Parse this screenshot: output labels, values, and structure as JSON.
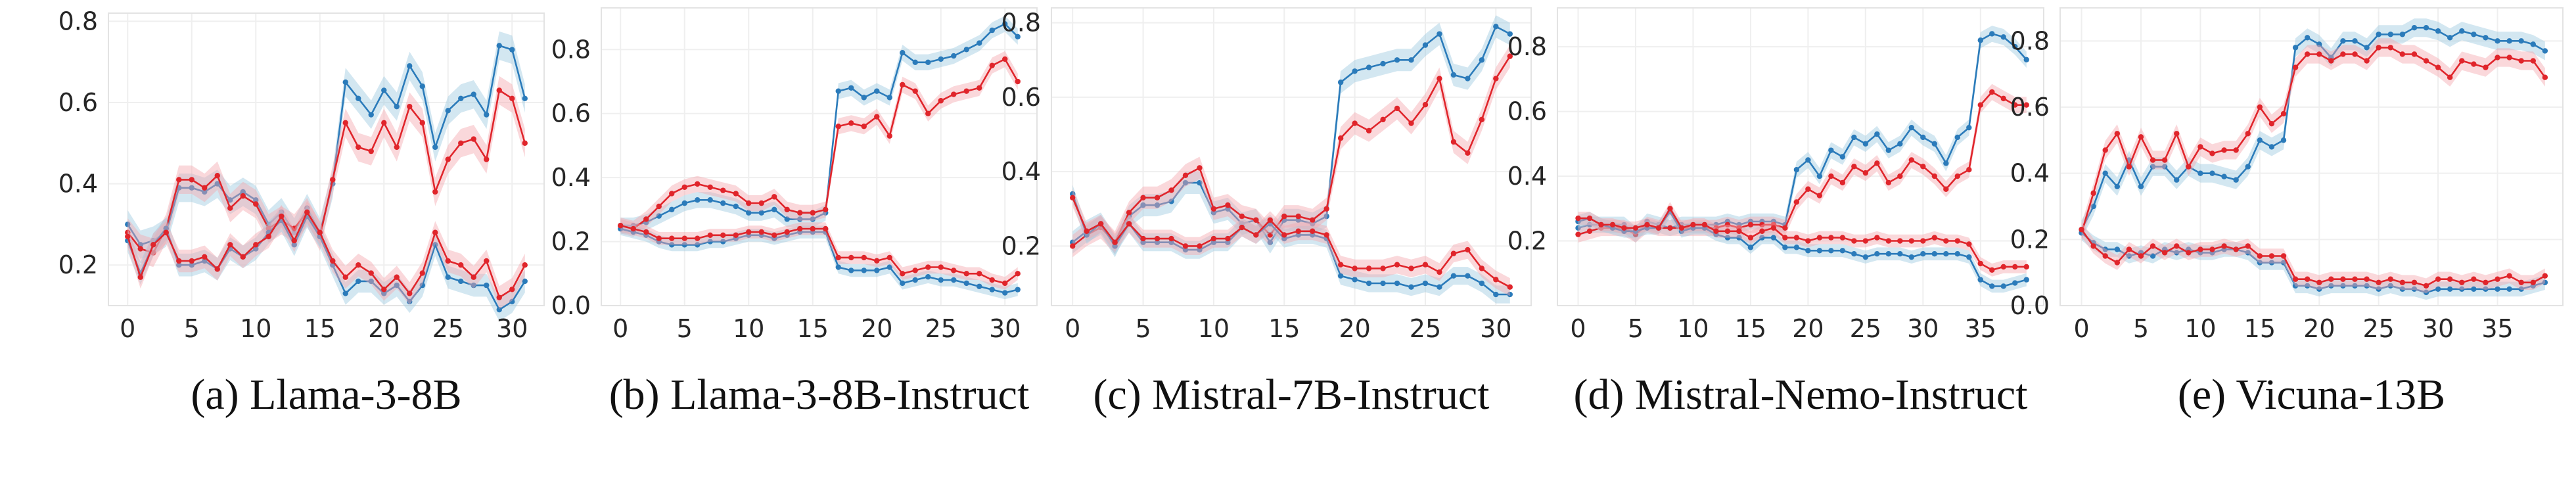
{
  "colors": {
    "blue": "#2b7bba",
    "red": "#e0252b",
    "blue_band": "#9ecae1",
    "red_band": "#f4a9b0"
  },
  "chart_data": [
    {
      "type": "line",
      "caption": "(a) Llama-3-8B",
      "x": [
        0,
        1,
        2,
        3,
        4,
        5,
        6,
        7,
        8,
        9,
        10,
        11,
        12,
        13,
        14,
        15,
        16,
        17,
        18,
        19,
        20,
        21,
        22,
        23,
        24,
        25,
        26,
        27,
        28,
        29,
        30,
        31
      ],
      "xlim": [
        -1.5,
        32.5
      ],
      "ylim": [
        0.1,
        0.82
      ],
      "xticks": [
        0,
        5,
        10,
        15,
        20,
        25,
        30
      ],
      "yticks": [
        0.2,
        0.4,
        0.6,
        0.8
      ],
      "series": [
        {
          "color": "blue",
          "values": [
            0.3,
            0.25,
            0.26,
            0.28,
            0.39,
            0.39,
            0.38,
            0.4,
            0.36,
            0.38,
            0.36,
            0.3,
            0.33,
            0.28,
            0.34,
            0.28,
            0.4,
            0.65,
            0.61,
            0.57,
            0.63,
            0.59,
            0.69,
            0.64,
            0.49,
            0.58,
            0.61,
            0.62,
            0.57,
            0.74,
            0.73,
            0.61
          ]
        },
        {
          "color": "red",
          "values": [
            0.28,
            0.24,
            0.23,
            0.29,
            0.41,
            0.41,
            0.39,
            0.42,
            0.34,
            0.37,
            0.35,
            0.29,
            0.31,
            0.29,
            0.33,
            0.27,
            0.41,
            0.55,
            0.49,
            0.48,
            0.55,
            0.49,
            0.59,
            0.55,
            0.38,
            0.46,
            0.5,
            0.51,
            0.46,
            0.63,
            0.61,
            0.5
          ]
        },
        {
          "color": "blue",
          "values": [
            0.26,
            0.18,
            0.25,
            0.29,
            0.2,
            0.2,
            0.21,
            0.19,
            0.24,
            0.22,
            0.24,
            0.28,
            0.31,
            0.25,
            0.32,
            0.27,
            0.2,
            0.13,
            0.16,
            0.16,
            0.13,
            0.15,
            0.11,
            0.15,
            0.25,
            0.17,
            0.16,
            0.15,
            0.15,
            0.09,
            0.11,
            0.16
          ]
        },
        {
          "color": "red",
          "values": [
            0.27,
            0.17,
            0.25,
            0.28,
            0.21,
            0.21,
            0.22,
            0.19,
            0.25,
            0.22,
            0.25,
            0.27,
            0.32,
            0.26,
            0.33,
            0.28,
            0.21,
            0.17,
            0.2,
            0.18,
            0.14,
            0.17,
            0.13,
            0.18,
            0.28,
            0.21,
            0.2,
            0.17,
            0.21,
            0.12,
            0.14,
            0.2
          ]
        }
      ]
    },
    {
      "type": "line",
      "caption": "(b) Llama-3-8B-Instruct",
      "x": [
        0,
        1,
        2,
        3,
        4,
        5,
        6,
        7,
        8,
        9,
        10,
        11,
        12,
        13,
        14,
        15,
        16,
        17,
        18,
        19,
        20,
        21,
        22,
        23,
        24,
        25,
        26,
        27,
        28,
        29,
        30,
        31
      ],
      "xlim": [
        -1.5,
        32.5
      ],
      "ylim": [
        0.0,
        0.93
      ],
      "xticks": [
        0,
        5,
        10,
        15,
        20,
        25,
        30
      ],
      "yticks": [
        0.0,
        0.2,
        0.4,
        0.6,
        0.8
      ],
      "series": [
        {
          "color": "blue",
          "values": [
            0.25,
            0.25,
            0.26,
            0.28,
            0.3,
            0.32,
            0.33,
            0.33,
            0.32,
            0.31,
            0.29,
            0.29,
            0.3,
            0.27,
            0.27,
            0.27,
            0.29,
            0.67,
            0.68,
            0.65,
            0.67,
            0.65,
            0.79,
            0.76,
            0.76,
            0.77,
            0.78,
            0.8,
            0.82,
            0.86,
            0.88,
            0.84
          ]
        },
        {
          "color": "red",
          "values": [
            0.25,
            0.24,
            0.27,
            0.31,
            0.35,
            0.37,
            0.38,
            0.37,
            0.36,
            0.35,
            0.32,
            0.32,
            0.34,
            0.3,
            0.29,
            0.29,
            0.3,
            0.56,
            0.57,
            0.56,
            0.59,
            0.53,
            0.69,
            0.67,
            0.6,
            0.64,
            0.66,
            0.67,
            0.68,
            0.75,
            0.77,
            0.7
          ]
        },
        {
          "color": "blue",
          "values": [
            0.24,
            0.23,
            0.22,
            0.2,
            0.19,
            0.19,
            0.19,
            0.2,
            0.2,
            0.21,
            0.22,
            0.22,
            0.21,
            0.22,
            0.23,
            0.23,
            0.23,
            0.12,
            0.11,
            0.11,
            0.11,
            0.12,
            0.07,
            0.08,
            0.09,
            0.08,
            0.08,
            0.07,
            0.06,
            0.05,
            0.04,
            0.05
          ]
        },
        {
          "color": "red",
          "values": [
            0.25,
            0.24,
            0.23,
            0.21,
            0.21,
            0.21,
            0.21,
            0.22,
            0.22,
            0.22,
            0.23,
            0.23,
            0.22,
            0.23,
            0.24,
            0.24,
            0.24,
            0.15,
            0.15,
            0.15,
            0.14,
            0.15,
            0.1,
            0.11,
            0.12,
            0.12,
            0.11,
            0.1,
            0.1,
            0.08,
            0.07,
            0.1
          ]
        }
      ]
    },
    {
      "type": "line",
      "caption": "(c) Mistral-7B-Instruct",
      "x": [
        0,
        1,
        2,
        3,
        4,
        5,
        6,
        7,
        8,
        9,
        10,
        11,
        12,
        13,
        14,
        15,
        16,
        17,
        18,
        19,
        20,
        21,
        22,
        23,
        24,
        25,
        26,
        27,
        28,
        29,
        30,
        31
      ],
      "xlim": [
        -1.5,
        32.5
      ],
      "ylim": [
        0.04,
        0.84
      ],
      "xticks": [
        0,
        5,
        10,
        15,
        20,
        25,
        30
      ],
      "yticks": [
        0.2,
        0.4,
        0.6,
        0.8
      ],
      "series": [
        {
          "color": "blue",
          "values": [
            0.21,
            0.24,
            0.26,
            0.2,
            0.28,
            0.31,
            0.31,
            0.32,
            0.37,
            0.37,
            0.29,
            0.3,
            0.26,
            0.27,
            0.21,
            0.27,
            0.27,
            0.26,
            0.28,
            0.64,
            0.67,
            0.68,
            0.69,
            0.7,
            0.7,
            0.74,
            0.77,
            0.66,
            0.65,
            0.7,
            0.79,
            0.77
          ]
        },
        {
          "color": "red",
          "values": [
            0.2,
            0.23,
            0.25,
            0.21,
            0.29,
            0.33,
            0.33,
            0.35,
            0.39,
            0.41,
            0.3,
            0.31,
            0.28,
            0.27,
            0.23,
            0.28,
            0.28,
            0.27,
            0.3,
            0.49,
            0.53,
            0.51,
            0.54,
            0.57,
            0.53,
            0.58,
            0.65,
            0.48,
            0.45,
            0.54,
            0.65,
            0.71
          ]
        },
        {
          "color": "blue",
          "values": [
            0.34,
            0.23,
            0.26,
            0.2,
            0.26,
            0.21,
            0.21,
            0.21,
            0.19,
            0.19,
            0.21,
            0.21,
            0.25,
            0.23,
            0.26,
            0.22,
            0.23,
            0.23,
            0.22,
            0.12,
            0.11,
            0.1,
            0.1,
            0.1,
            0.09,
            0.1,
            0.09,
            0.12,
            0.12,
            0.1,
            0.07,
            0.07
          ]
        },
        {
          "color": "red",
          "values": [
            0.33,
            0.24,
            0.26,
            0.21,
            0.26,
            0.22,
            0.22,
            0.22,
            0.2,
            0.2,
            0.22,
            0.22,
            0.25,
            0.23,
            0.27,
            0.23,
            0.24,
            0.24,
            0.23,
            0.15,
            0.14,
            0.14,
            0.14,
            0.15,
            0.14,
            0.15,
            0.13,
            0.18,
            0.19,
            0.14,
            0.11,
            0.09
          ]
        }
      ]
    },
    {
      "type": "line",
      "caption": "(d) Mistral-Nemo-Instruct",
      "x": [
        0,
        1,
        2,
        3,
        4,
        5,
        6,
        7,
        8,
        9,
        10,
        11,
        12,
        13,
        14,
        15,
        16,
        17,
        18,
        19,
        20,
        21,
        22,
        23,
        24,
        25,
        26,
        27,
        28,
        29,
        30,
        31,
        32,
        33,
        34,
        35,
        36,
        37,
        38,
        39
      ],
      "xlim": [
        -1.8,
        40.5
      ],
      "ylim": [
        0.0,
        0.92
      ],
      "xticks": [
        0,
        5,
        10,
        15,
        20,
        25,
        30,
        35
      ],
      "yticks": [
        0.2,
        0.4,
        0.6,
        0.8
      ],
      "series": [
        {
          "color": "blue",
          "values": [
            0.24,
            0.25,
            0.25,
            0.25,
            0.25,
            0.22,
            0.26,
            0.25,
            0.24,
            0.25,
            0.25,
            0.25,
            0.25,
            0.26,
            0.25,
            0.26,
            0.26,
            0.26,
            0.25,
            0.42,
            0.45,
            0.4,
            0.48,
            0.46,
            0.52,
            0.5,
            0.53,
            0.48,
            0.5,
            0.55,
            0.52,
            0.5,
            0.44,
            0.52,
            0.55,
            0.82,
            0.84,
            0.83,
            0.8,
            0.76
          ]
        },
        {
          "color": "red",
          "values": [
            0.22,
            0.23,
            0.24,
            0.24,
            0.24,
            0.22,
            0.25,
            0.24,
            0.24,
            0.24,
            0.24,
            0.24,
            0.24,
            0.25,
            0.24,
            0.25,
            0.25,
            0.25,
            0.24,
            0.32,
            0.36,
            0.34,
            0.4,
            0.38,
            0.43,
            0.41,
            0.44,
            0.38,
            0.4,
            0.45,
            0.43,
            0.4,
            0.36,
            0.4,
            0.42,
            0.62,
            0.66,
            0.64,
            0.62,
            0.62
          ]
        },
        {
          "color": "blue",
          "values": [
            0.26,
            0.27,
            0.25,
            0.24,
            0.23,
            0.23,
            0.24,
            0.24,
            0.29,
            0.23,
            0.24,
            0.24,
            0.22,
            0.21,
            0.21,
            0.18,
            0.21,
            0.21,
            0.18,
            0.18,
            0.17,
            0.17,
            0.17,
            0.17,
            0.16,
            0.15,
            0.16,
            0.16,
            0.16,
            0.15,
            0.16,
            0.16,
            0.16,
            0.16,
            0.15,
            0.08,
            0.06,
            0.06,
            0.07,
            0.08
          ]
        },
        {
          "color": "red",
          "values": [
            0.27,
            0.27,
            0.25,
            0.25,
            0.24,
            0.24,
            0.25,
            0.24,
            0.3,
            0.24,
            0.25,
            0.25,
            0.23,
            0.23,
            0.23,
            0.21,
            0.23,
            0.24,
            0.21,
            0.21,
            0.2,
            0.21,
            0.21,
            0.21,
            0.2,
            0.2,
            0.21,
            0.2,
            0.2,
            0.2,
            0.2,
            0.21,
            0.2,
            0.2,
            0.19,
            0.13,
            0.11,
            0.12,
            0.12,
            0.12
          ]
        }
      ]
    },
    {
      "type": "line",
      "caption": "(e) Vicuna-13B",
      "x": [
        0,
        1,
        2,
        3,
        4,
        5,
        6,
        7,
        8,
        9,
        10,
        11,
        12,
        13,
        14,
        15,
        16,
        17,
        18,
        19,
        20,
        21,
        22,
        23,
        24,
        25,
        26,
        27,
        28,
        29,
        30,
        31,
        32,
        33,
        34,
        35,
        36,
        37,
        38,
        39
      ],
      "xlim": [
        -1.8,
        40.5
      ],
      "ylim": [
        0.0,
        0.9
      ],
      "xticks": [
        0,
        5,
        10,
        15,
        20,
        25,
        30,
        35
      ],
      "yticks": [
        0.0,
        0.2,
        0.4,
        0.6,
        0.8
      ],
      "series": [
        {
          "color": "blue",
          "values": [
            0.23,
            0.3,
            0.4,
            0.36,
            0.44,
            0.36,
            0.42,
            0.42,
            0.38,
            0.42,
            0.4,
            0.4,
            0.39,
            0.38,
            0.42,
            0.5,
            0.48,
            0.5,
            0.78,
            0.81,
            0.79,
            0.75,
            0.8,
            0.8,
            0.78,
            0.82,
            0.82,
            0.82,
            0.84,
            0.84,
            0.83,
            0.81,
            0.83,
            0.82,
            0.81,
            0.8,
            0.8,
            0.8,
            0.79,
            0.77
          ]
        },
        {
          "color": "red",
          "values": [
            0.22,
            0.34,
            0.47,
            0.52,
            0.42,
            0.51,
            0.44,
            0.44,
            0.52,
            0.42,
            0.48,
            0.46,
            0.47,
            0.47,
            0.52,
            0.6,
            0.55,
            0.58,
            0.72,
            0.76,
            0.76,
            0.74,
            0.76,
            0.76,
            0.74,
            0.78,
            0.78,
            0.76,
            0.76,
            0.74,
            0.72,
            0.69,
            0.74,
            0.73,
            0.72,
            0.75,
            0.75,
            0.74,
            0.74,
            0.69
          ]
        },
        {
          "color": "blue",
          "values": [
            0.22,
            0.19,
            0.17,
            0.17,
            0.15,
            0.16,
            0.15,
            0.17,
            0.16,
            0.17,
            0.16,
            0.16,
            0.17,
            0.17,
            0.16,
            0.13,
            0.13,
            0.13,
            0.06,
            0.06,
            0.05,
            0.06,
            0.06,
            0.06,
            0.06,
            0.05,
            0.06,
            0.05,
            0.05,
            0.04,
            0.05,
            0.05,
            0.05,
            0.05,
            0.05,
            0.05,
            0.05,
            0.05,
            0.06,
            0.07
          ]
        },
        {
          "color": "red",
          "values": [
            0.23,
            0.18,
            0.15,
            0.13,
            0.17,
            0.15,
            0.18,
            0.16,
            0.18,
            0.16,
            0.17,
            0.17,
            0.18,
            0.17,
            0.18,
            0.15,
            0.15,
            0.15,
            0.08,
            0.08,
            0.07,
            0.08,
            0.08,
            0.08,
            0.08,
            0.07,
            0.08,
            0.07,
            0.07,
            0.06,
            0.08,
            0.08,
            0.07,
            0.08,
            0.07,
            0.08,
            0.09,
            0.07,
            0.07,
            0.09
          ]
        }
      ]
    }
  ]
}
